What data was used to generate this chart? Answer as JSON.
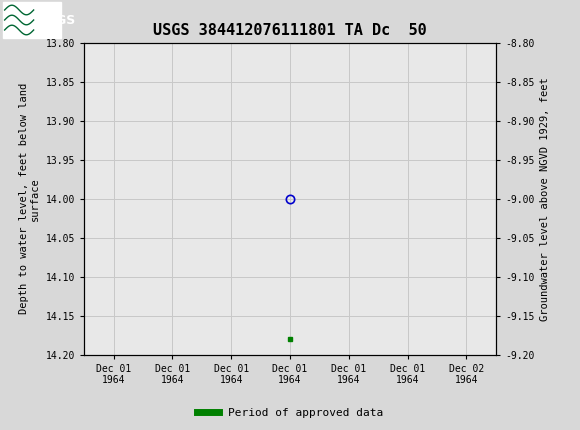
{
  "title": "USGS 384412076111801 TA Dc  50",
  "ylabel_left": "Depth to water level, feet below land\nsurface",
  "ylabel_right": "Groundwater level above NGVD 1929, feet",
  "ylim_left": [
    13.8,
    14.2
  ],
  "ylim_right": [
    -8.8,
    -9.2
  ],
  "yticks_left": [
    13.8,
    13.85,
    13.9,
    13.95,
    14.0,
    14.05,
    14.1,
    14.15,
    14.2
  ],
  "yticks_right": [
    -8.8,
    -8.85,
    -8.9,
    -8.95,
    -9.0,
    -9.05,
    -9.1,
    -9.15,
    -9.2
  ],
  "xtick_labels": [
    "Dec 01\n1964",
    "Dec 01\n1964",
    "Dec 01\n1964",
    "Dec 01\n1964",
    "Dec 01\n1964",
    "Dec 01\n1964",
    "Dec 02\n1964"
  ],
  "data_x": [
    3.0
  ],
  "data_y_circle": [
    14.0
  ],
  "data_x_square": [
    3.0
  ],
  "data_y_square": [
    14.18
  ],
  "circle_color": "#0000cc",
  "square_color": "#008000",
  "grid_color": "#c8c8c8",
  "bg_color": "#ffffff",
  "plot_bg_color": "#e8e8e8",
  "header_bg": "#1a6b3c",
  "legend_label": "Period of approved data",
  "legend_color": "#008000",
  "title_fontsize": 11,
  "axis_label_fontsize": 7.5,
  "tick_fontsize": 7
}
